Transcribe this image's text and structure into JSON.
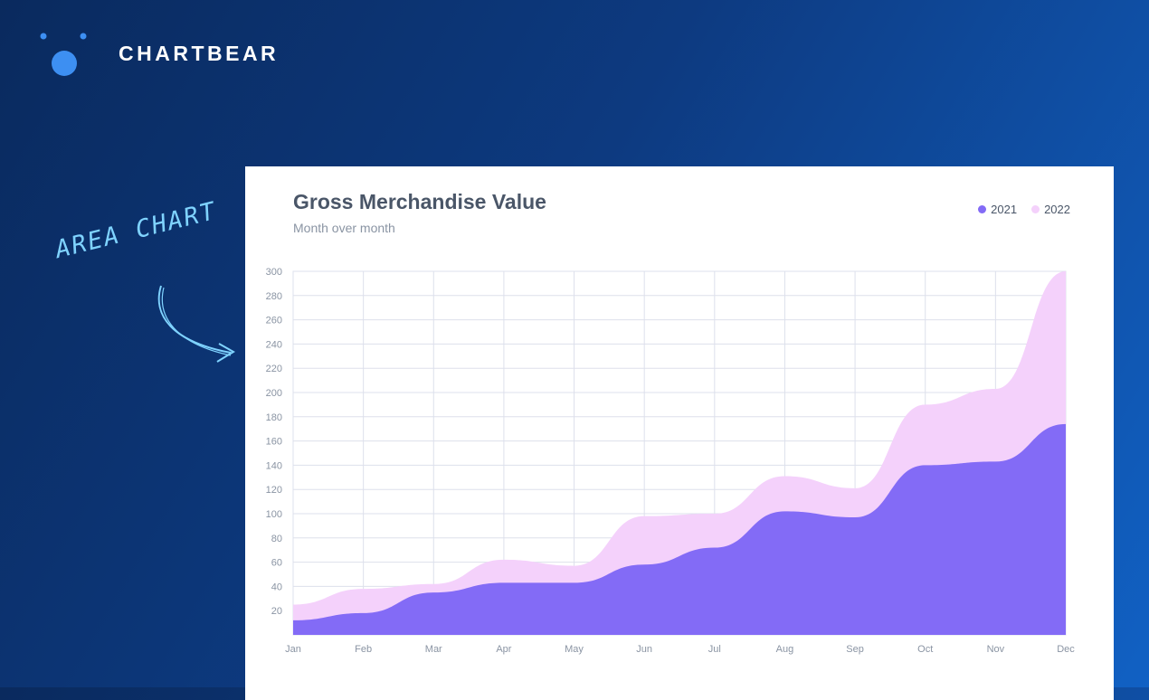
{
  "brand": {
    "name": "CHARTBEAR"
  },
  "annotation": {
    "text": "AREA CHART",
    "color": "#7fd3ff"
  },
  "chart_data": {
    "type": "area",
    "title": "Gross Merchandise Value",
    "subtitle": "Month over month",
    "categories": [
      "Jan",
      "Feb",
      "Mar",
      "Apr",
      "May",
      "Jun",
      "Jul",
      "Aug",
      "Sep",
      "Oct",
      "Nov",
      "Dec"
    ],
    "ylim": [
      0,
      300
    ],
    "yticks": [
      20,
      40,
      60,
      80,
      100,
      120,
      140,
      160,
      180,
      200,
      220,
      240,
      260,
      280,
      300
    ],
    "stacked": true,
    "grid": true,
    "legend_position": "top-right",
    "series": [
      {
        "name": "2021",
        "color": "#836bf6",
        "values": [
          12,
          18,
          35,
          43,
          43,
          58,
          72,
          102,
          97,
          140,
          143,
          174
        ]
      },
      {
        "name": "2022",
        "color": "#f4d1fb",
        "values": [
          13,
          20,
          7,
          19,
          14,
          40,
          28,
          29,
          24,
          50,
          60,
          126
        ]
      }
    ]
  }
}
